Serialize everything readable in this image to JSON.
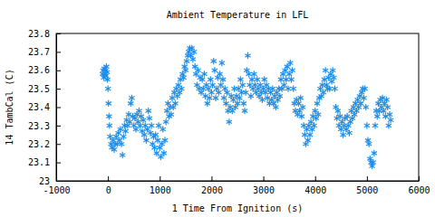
{
  "chart_data": {
    "type": "scatter",
    "title": "Ambient Temperature in LFL",
    "x_label": "1 Time From Ignition (s)",
    "y_label": "14 TambCal (C)",
    "color": "#1f8ee8",
    "marker": "asterisk",
    "grid": false,
    "xlim": [
      -1000,
      6000
    ],
    "xticks": [
      -1000,
      0,
      1000,
      2000,
      3000,
      4000,
      5000,
      6000
    ],
    "ylim": [
      23,
      23.8
    ],
    "yticks": [
      23,
      23.1,
      23.2,
      23.3,
      23.4,
      23.5,
      23.6,
      23.7,
      23.8
    ],
    "x": [
      -100,
      -90,
      -80,
      -70,
      -60,
      -50,
      -40,
      -30,
      -20,
      -10,
      0,
      10,
      20,
      30,
      40,
      60,
      80,
      100,
      120,
      140,
      160,
      180,
      200,
      220,
      240,
      260,
      280,
      300,
      320,
      340,
      360,
      380,
      400,
      420,
      440,
      460,
      480,
      500,
      520,
      540,
      560,
      580,
      600,
      620,
      640,
      660,
      680,
      700,
      720,
      740,
      760,
      780,
      800,
      820,
      840,
      860,
      880,
      900,
      920,
      940,
      960,
      980,
      1000,
      1020,
      1040,
      1060,
      1080,
      1100,
      1120,
      1140,
      1160,
      1180,
      1200,
      1220,
      1240,
      1260,
      1280,
      1300,
      1320,
      1340,
      1360,
      1380,
      1400,
      1420,
      1440,
      1460,
      1480,
      1500,
      1520,
      1540,
      1560,
      1580,
      1600,
      1620,
      1640,
      1660,
      1680,
      1700,
      1720,
      1740,
      1760,
      1780,
      1800,
      1820,
      1840,
      1860,
      1880,
      1900,
      1920,
      1940,
      1960,
      1980,
      2000,
      2020,
      2040,
      2060,
      2080,
      2100,
      2120,
      2140,
      2160,
      2180,
      2200,
      2220,
      2240,
      2260,
      2280,
      2300,
      2320,
      2340,
      2360,
      2380,
      2400,
      2420,
      2440,
      2460,
      2480,
      2500,
      2520,
      2540,
      2560,
      2580,
      2600,
      2620,
      2640,
      2660,
      2680,
      2700,
      2720,
      2740,
      2760,
      2780,
      2800,
      2820,
      2840,
      2860,
      2880,
      2900,
      2920,
      2940,
      2960,
      2980,
      3000,
      3020,
      3040,
      3060,
      3080,
      3100,
      3120,
      3140,
      3160,
      3180,
      3200,
      3220,
      3240,
      3260,
      3280,
      3300,
      3320,
      3340,
      3360,
      3380,
      3400,
      3420,
      3440,
      3460,
      3480,
      3500,
      3520,
      3540,
      3560,
      3580,
      3600,
      3620,
      3640,
      3660,
      3680,
      3700,
      3720,
      3740,
      3760,
      3780,
      3800,
      3820,
      3840,
      3860,
      3880,
      3900,
      3920,
      3940,
      3960,
      3980,
      4000,
      4020,
      4040,
      4060,
      4080,
      4100,
      4120,
      4140,
      4160,
      4180,
      4200,
      4220,
      4240,
      4260,
      4280,
      4300,
      4320,
      4340,
      4360,
      4380,
      4400,
      4420,
      4440,
      4460,
      4480,
      4500,
      4520,
      4540,
      4560,
      4580,
      4600,
      4620,
      4640,
      4660,
      4680,
      4700,
      4720,
      4740,
      4760,
      4780,
      4800,
      4820,
      4840,
      4860,
      4880,
      4900,
      4920,
      4940,
      4960,
      4980,
      5000,
      5020,
      5040,
      5060,
      5080,
      5100,
      5120,
      5140,
      5160,
      5180,
      5200,
      5220,
      5240,
      5260,
      5280,
      5300,
      5320,
      5340,
      5360,
      5380,
      5400,
      5420,
      5440,
      5460
    ],
    "values": [
      23.58,
      23.6,
      23.56,
      23.61,
      23.58,
      23.6,
      23.57,
      23.62,
      23.59,
      23.55,
      23.5,
      23.42,
      23.35,
      23.3,
      23.24,
      23.2,
      23.18,
      23.22,
      23.17,
      23.2,
      23.24,
      23.2,
      23.26,
      23.22,
      23.28,
      23.2,
      23.14,
      23.24,
      23.3,
      23.27,
      23.33,
      23.3,
      23.36,
      23.32,
      23.42,
      23.45,
      23.35,
      23.3,
      23.34,
      23.28,
      23.36,
      23.32,
      23.38,
      23.3,
      23.35,
      23.27,
      23.33,
      23.25,
      23.3,
      23.22,
      23.28,
      23.38,
      23.34,
      23.26,
      23.3,
      23.2,
      23.24,
      23.18,
      23.25,
      23.15,
      23.22,
      23.3,
      23.18,
      23.13,
      23.2,
      23.28,
      23.15,
      23.22,
      23.32,
      23.38,
      23.42,
      23.35,
      23.4,
      23.36,
      23.45,
      23.4,
      23.48,
      23.42,
      23.5,
      23.46,
      23.52,
      23.48,
      23.55,
      23.5,
      23.58,
      23.56,
      23.62,
      23.6,
      23.65,
      23.68,
      23.7,
      23.72,
      23.68,
      23.72,
      23.66,
      23.7,
      23.62,
      23.58,
      23.52,
      23.6,
      23.5,
      23.56,
      23.48,
      23.55,
      23.5,
      23.58,
      23.46,
      23.52,
      23.42,
      23.5,
      23.45,
      23.55,
      23.48,
      23.52,
      23.65,
      23.6,
      23.45,
      23.5,
      23.56,
      23.48,
      23.58,
      23.52,
      23.64,
      23.55,
      23.45,
      23.5,
      23.42,
      23.48,
      23.38,
      23.32,
      23.4,
      23.46,
      23.38,
      23.44,
      23.5,
      23.4,
      23.46,
      23.42,
      23.5,
      23.45,
      23.55,
      23.48,
      23.52,
      23.42,
      23.38,
      23.48,
      23.6,
      23.68,
      23.58,
      23.52,
      23.46,
      23.55,
      23.5,
      23.58,
      23.52,
      23.48,
      23.55,
      23.5,
      23.46,
      23.52,
      23.48,
      23.44,
      23.5,
      23.55,
      23.48,
      23.52,
      23.45,
      23.5,
      23.42,
      23.48,
      23.44,
      23.5,
      23.42,
      23.46,
      23.4,
      23.48,
      23.44,
      23.5,
      23.46,
      23.55,
      23.5,
      23.58,
      23.52,
      23.6,
      23.55,
      23.62,
      23.5,
      23.58,
      23.64,
      23.55,
      23.6,
      23.5,
      23.42,
      23.38,
      23.44,
      23.36,
      23.42,
      23.38,
      23.45,
      23.35,
      23.4,
      23.3,
      23.25,
      23.2,
      23.28,
      23.22,
      23.3,
      23.25,
      23.32,
      23.28,
      23.35,
      23.3,
      23.38,
      23.34,
      23.42,
      23.36,
      23.45,
      23.5,
      23.46,
      23.52,
      23.48,
      23.55,
      23.6,
      23.52,
      23.5,
      23.56,
      23.5,
      23.58,
      23.54,
      23.6,
      23.56,
      23.5,
      23.4,
      23.34,
      23.38,
      23.3,
      23.35,
      23.28,
      23.32,
      23.25,
      23.3,
      23.34,
      23.28,
      23.35,
      23.3,
      23.26,
      23.32,
      23.38,
      23.34,
      23.4,
      23.36,
      23.42,
      23.38,
      23.44,
      23.4,
      23.46,
      23.42,
      23.48,
      23.5,
      23.45,
      23.5,
      23.4,
      23.3,
      23.22,
      23.2,
      23.12,
      23.1,
      23.08,
      23.1,
      23.15,
      23.3,
      23.38,
      23.35,
      23.42,
      23.38,
      23.44,
      23.4,
      23.45,
      23.38,
      23.42,
      23.35,
      23.44,
      23.4,
      23.3,
      23.36,
      23.33
    ]
  }
}
